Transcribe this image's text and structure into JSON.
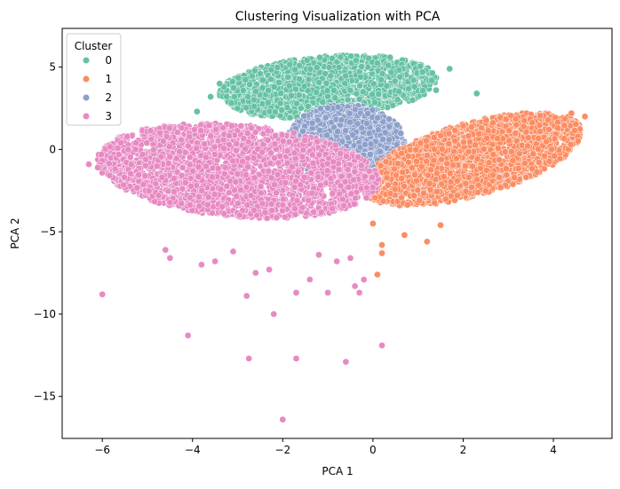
{
  "chart_data": {
    "type": "scatter",
    "title": "Clustering Visualization with PCA",
    "xlabel": "PCA 1",
    "ylabel": "PCA 2",
    "xlim": [
      -6.89,
      5.3
    ],
    "ylim": [
      -17.55,
      7.35
    ],
    "xticks": [
      -6,
      -4,
      -2,
      0,
      2,
      4
    ],
    "yticks": [
      5,
      0,
      -5,
      -10,
      -15
    ],
    "grid": false,
    "legend": {
      "title": "Cluster",
      "placement": "top-left",
      "entries": [
        "0",
        "1",
        "2",
        "3"
      ]
    },
    "series": [
      {
        "name": "0",
        "color": "#66c2a5",
        "core": {
          "center": [
            -1.0,
            3.8
          ],
          "axis_a": [
            2.4,
            0.3
          ],
          "axis_b": [
            0.2,
            1.9
          ],
          "count": 1500,
          "min_y": 1.4
        },
        "points": [
          [
            1.7,
            4.9
          ],
          [
            1.1,
            4.7
          ],
          [
            0.6,
            4.4
          ],
          [
            -3.6,
            3.2
          ],
          [
            -3.4,
            4.0
          ],
          [
            -2.5,
            4.6
          ],
          [
            0.9,
            4.2
          ],
          [
            1.4,
            3.6
          ],
          [
            2.3,
            3.4
          ],
          [
            -3.9,
            2.3
          ]
        ]
      },
      {
        "name": "1",
        "color": "#fc8d62",
        "core": {
          "center": [
            2.2,
            -0.6
          ],
          "axis_a": [
            2.4,
            2.0
          ],
          "axis_b": [
            -0.4,
            2.0
          ],
          "count": 2200
        },
        "points": [
          [
            0.1,
            -7.6
          ],
          [
            0.2,
            -6.3
          ],
          [
            0.2,
            -5.8
          ],
          [
            0.7,
            -5.2
          ],
          [
            1.2,
            -5.6
          ],
          [
            1.5,
            -4.6
          ],
          [
            0.0,
            -4.5
          ],
          [
            4.7,
            2.0
          ],
          [
            4.4,
            2.2
          ]
        ]
      },
      {
        "name": "2",
        "color": "#8da0cb",
        "core": {
          "center": [
            -0.6,
            0.4
          ],
          "axis_a": [
            1.3,
            -0.2
          ],
          "axis_b": [
            0.1,
            2.3
          ],
          "count": 1400
        },
        "points": []
      },
      {
        "name": "3",
        "color": "#e78ac3",
        "core": {
          "center": [
            -3.0,
            -1.3
          ],
          "axis_a": [
            3.1,
            -1.0
          ],
          "axis_b": [
            0.4,
            2.7
          ],
          "count": 2600
        },
        "points": [
          [
            -6.0,
            -8.8
          ],
          [
            -4.1,
            -11.3
          ],
          [
            -2.2,
            -10.0
          ],
          [
            -2.75,
            -12.7
          ],
          [
            -1.7,
            -12.7
          ],
          [
            -0.6,
            -12.9
          ],
          [
            -2.0,
            -16.4
          ],
          [
            0.2,
            -11.9
          ],
          [
            -2.8,
            -8.9
          ],
          [
            -1.7,
            -8.7
          ],
          [
            -1.0,
            -8.7
          ],
          [
            -0.4,
            -8.3
          ],
          [
            -0.3,
            -8.7
          ],
          [
            -3.8,
            -7.0
          ],
          [
            -3.5,
            -6.8
          ],
          [
            -4.5,
            -6.6
          ],
          [
            -2.6,
            -7.5
          ],
          [
            -2.3,
            -7.3
          ],
          [
            -1.4,
            -7.9
          ],
          [
            -0.8,
            -6.8
          ],
          [
            -0.2,
            -7.9
          ],
          [
            -4.6,
            -6.1
          ],
          [
            -6.3,
            -0.9
          ],
          [
            -6.1,
            -1.1
          ],
          [
            -3.1,
            -6.2
          ],
          [
            -1.2,
            -6.4
          ],
          [
            -0.5,
            -6.6
          ]
        ]
      }
    ]
  }
}
